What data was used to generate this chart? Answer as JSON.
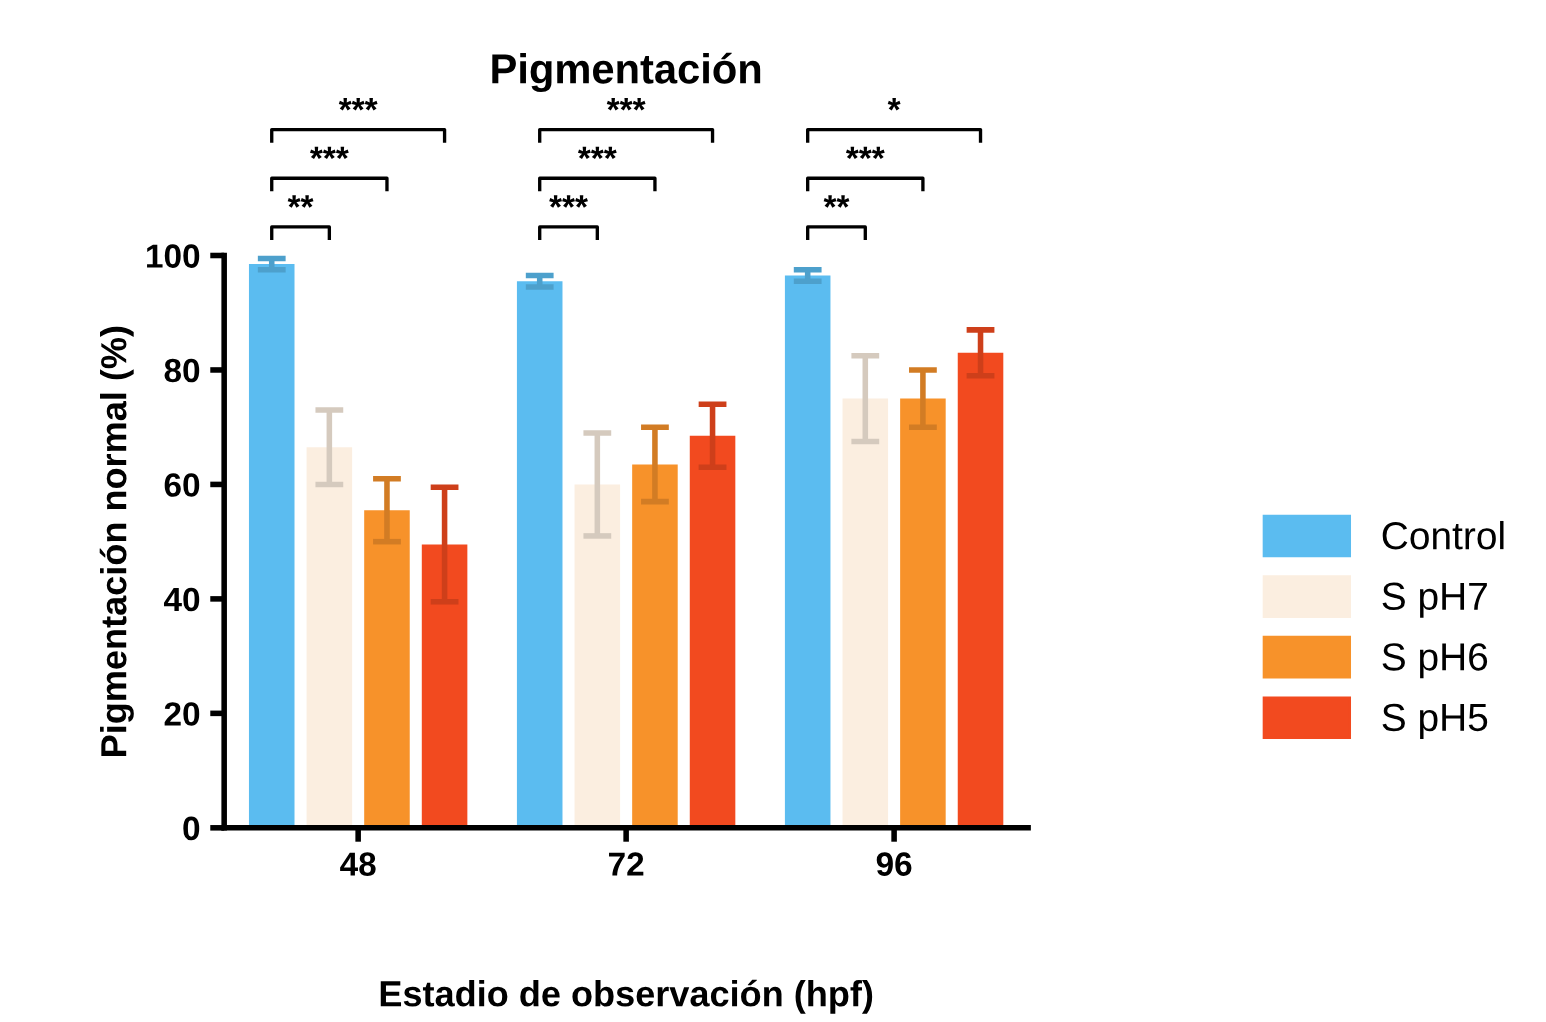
{
  "chart_data": {
    "type": "bar",
    "title": "Pigmentación",
    "xlabel": "Estadio de observación (hpf)",
    "ylabel": "Pigmentación normal (%)",
    "categories": [
      "48",
      "72",
      "96"
    ],
    "series": [
      {
        "name": "Control",
        "color": "#5bbcf0",
        "values": [
          98.5,
          95.5,
          96.5
        ],
        "errors": [
          1,
          1,
          1
        ]
      },
      {
        "name": "S pH7",
        "color": "#fbeee0",
        "values": [
          66.5,
          60,
          75
        ],
        "errors": [
          6.5,
          9,
          7.5
        ]
      },
      {
        "name": "S pH6",
        "color": "#f7922a",
        "values": [
          55.5,
          63.5,
          75
        ],
        "errors": [
          5.5,
          6.5,
          5
        ]
      },
      {
        "name": "S pH5",
        "color": "#f24a1f",
        "values": [
          49.5,
          68.5,
          83
        ],
        "errors": [
          10,
          5.5,
          4
        ]
      }
    ],
    "ylim": [
      0,
      100
    ],
    "yticks": [
      0,
      20,
      40,
      60,
      80,
      100
    ],
    "grid": false,
    "legend": "right",
    "annotations": [
      "**",
      "***",
      "***",
      "***",
      "***",
      "***",
      "**",
      "***",
      "*"
    ]
  }
}
